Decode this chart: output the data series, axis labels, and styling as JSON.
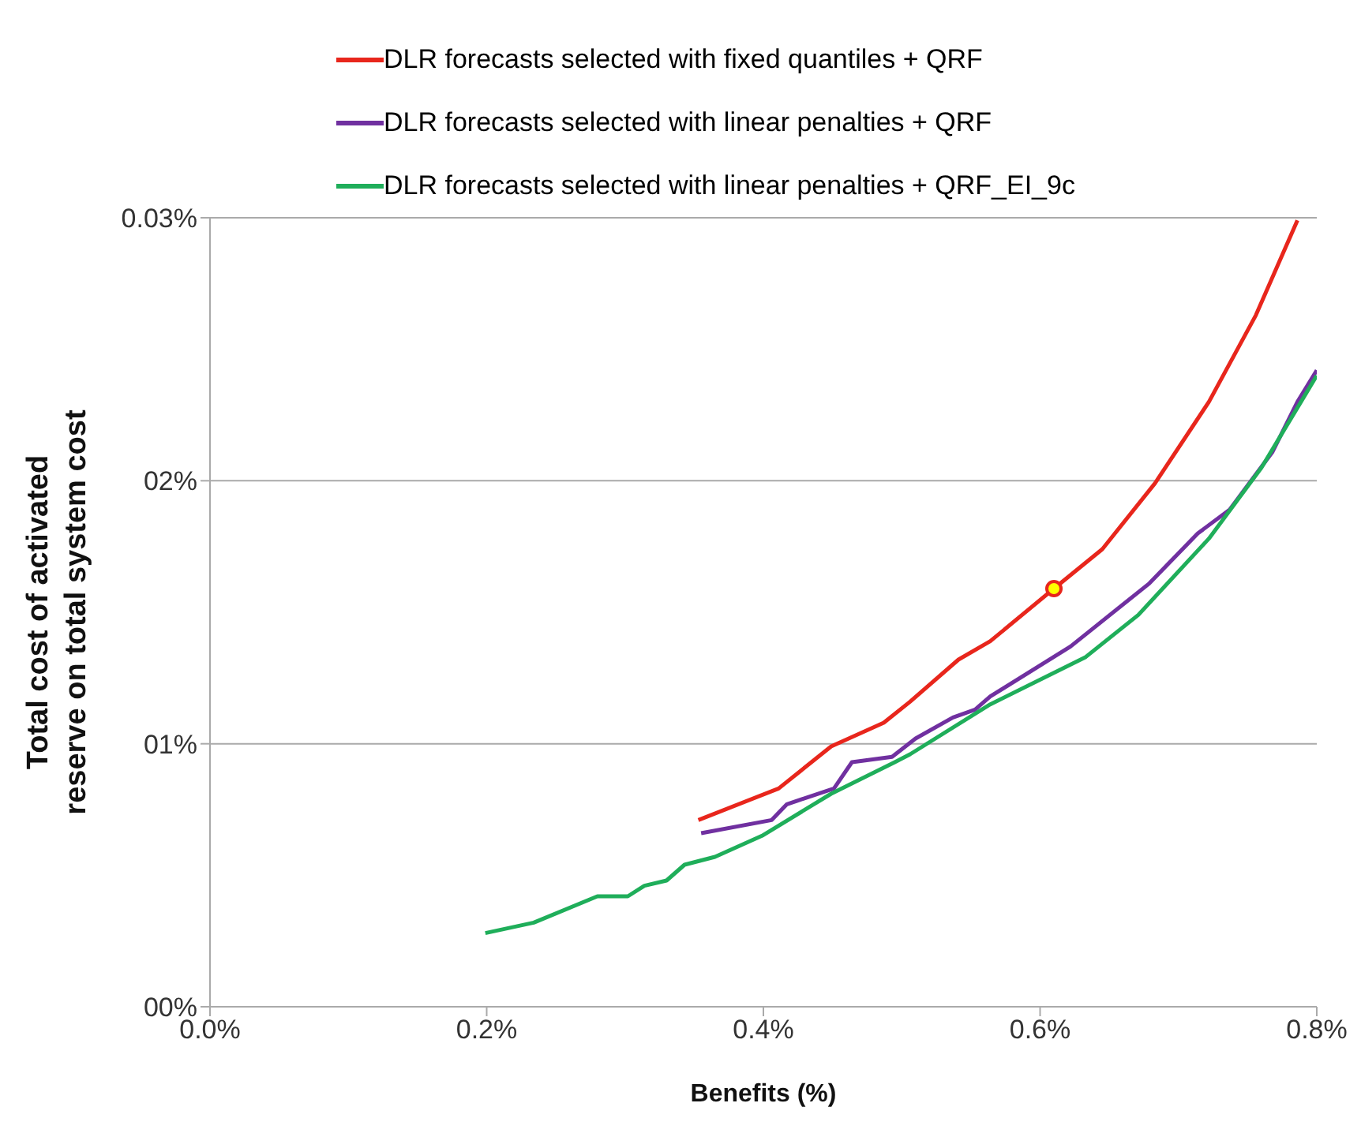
{
  "chart_data": {
    "type": "line",
    "xlabel": "Benefits (%)",
    "ylabel": "Total cost of activated reserve on total system cost",
    "xlim": [
      0,
      0.8
    ],
    "xticks": [
      {
        "value": 0,
        "label": "0.0%"
      },
      {
        "value": 0.2,
        "label": "0.2%"
      },
      {
        "value": 0.4,
        "label": "0.4%"
      },
      {
        "value": 0.6,
        "label": "0.6%"
      },
      {
        "value": 0.8,
        "label": "0.8%"
      }
    ],
    "ylim": [
      0,
      0.03
    ],
    "yticks": [
      {
        "value": 0,
        "label": "00%"
      },
      {
        "value": 0.01,
        "label": "01%"
      },
      {
        "value": 0.02,
        "label": "02%"
      },
      {
        "value": 0.03,
        "label": "0.03%"
      }
    ],
    "grid": "y",
    "legend": "top",
    "marker": "none",
    "line_style": "solid",
    "series": [
      {
        "name": "DLR forecasts selected with fixed quantiles + QRF",
        "color": "#e8261c",
        "x": [
          0.353,
          0.411,
          0.449,
          0.487,
          0.506,
          0.541,
          0.564,
          0.61,
          0.645,
          0.683,
          0.722,
          0.756,
          0.786
        ],
        "values": [
          0.0071,
          0.0083,
          0.0099,
          0.0108,
          0.0116,
          0.0132,
          0.0139,
          0.0159,
          0.0174,
          0.0199,
          0.023,
          0.0263,
          0.0299
        ]
      },
      {
        "name": "DLR forecasts selected with linear penalties + QRF",
        "color": "#7030a0",
        "x": [
          0.355,
          0.406,
          0.417,
          0.451,
          0.464,
          0.493,
          0.51,
          0.537,
          0.553,
          0.564,
          0.622,
          0.679,
          0.714,
          0.737,
          0.768,
          0.786,
          0.8
        ],
        "values": [
          0.0066,
          0.0071,
          0.0077,
          0.0083,
          0.0093,
          0.0095,
          0.0102,
          0.011,
          0.0113,
          0.0118,
          0.0137,
          0.0161,
          0.018,
          0.0189,
          0.0211,
          0.023,
          0.0242
        ]
      },
      {
        "name": "DLR forecasts selected with linear penalties + QRF_EI_9c",
        "color": "#1fae5a",
        "x": [
          0.199,
          0.234,
          0.28,
          0.302,
          0.314,
          0.33,
          0.343,
          0.365,
          0.399,
          0.449,
          0.495,
          0.506,
          0.564,
          0.633,
          0.671,
          0.722,
          0.76,
          0.8
        ],
        "values": [
          0.0028,
          0.0032,
          0.0042,
          0.0042,
          0.0046,
          0.0048,
          0.0054,
          0.0057,
          0.0065,
          0.0081,
          0.0093,
          0.0096,
          0.0115,
          0.0133,
          0.0149,
          0.0178,
          0.0205,
          0.024
        ]
      },
      {
        "type": "scatter",
        "color": "#ffff00",
        "marker": "circle",
        "x": [
          0.61
        ],
        "values": [
          0.0159
        ]
      }
    ]
  }
}
